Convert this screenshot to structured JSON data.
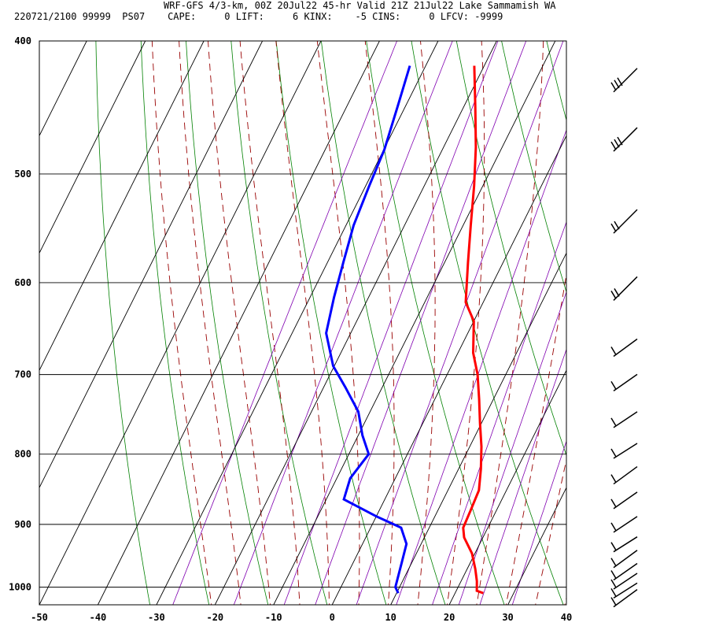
{
  "header": {
    "line1": "WRF-GFS 4/3-km, 00Z 20Jul22 45-hr Valid 21Z 21Jul22 Lake Sammamish WA",
    "line2": "220721/2100 99999  PS07    CAPE:     0 LIFT:     6 KINX:    -5 CINS:     0 LFCV: -9999"
  },
  "chart_data": {
    "type": "line",
    "subtype": "skew-t log-p sounding",
    "x_axis": {
      "label": "",
      "ticks": [
        -50,
        -40,
        -30,
        -20,
        -10,
        0,
        10,
        20,
        30,
        40
      ],
      "range": [
        -50,
        40
      ],
      "units": "degC"
    },
    "y_axis": {
      "label": "",
      "ticks": [
        400,
        500,
        600,
        700,
        800,
        900,
        1000
      ],
      "range": [
        400,
        1030
      ],
      "scale": "log",
      "units": "hPa"
    },
    "series": [
      {
        "color": "#ff0000",
        "points": [
          [
            -21.7,
            417
          ],
          [
            -18,
            447
          ],
          [
            -14.5,
            478
          ],
          [
            -11.5,
            510
          ],
          [
            -8.7,
            545
          ],
          [
            -6,
            580
          ],
          [
            -3,
            620
          ],
          [
            0,
            640
          ],
          [
            2.6,
            675
          ],
          [
            5.2,
            700
          ],
          [
            7.6,
            730
          ],
          [
            9.8,
            760
          ],
          [
            12,
            790
          ],
          [
            13.8,
            820
          ],
          [
            15.3,
            850
          ],
          [
            15.6,
            880
          ],
          [
            15.8,
            905
          ],
          [
            16.8,
            920
          ],
          [
            19.5,
            945
          ],
          [
            21.4,
            970
          ],
          [
            22.7,
            990
          ],
          [
            23.5,
            1006
          ],
          [
            24.8,
            1010
          ]
        ]
      },
      {
        "color": "#0000ff",
        "points": [
          [
            -32.7,
            417
          ],
          [
            -31.3,
            447
          ],
          [
            -29.9,
            480
          ],
          [
            -29.4,
            510
          ],
          [
            -28.7,
            545
          ],
          [
            -27.3,
            580
          ],
          [
            -25.9,
            615
          ],
          [
            -24.2,
            653
          ],
          [
            -20.2,
            690
          ],
          [
            -16.3,
            715
          ],
          [
            -12,
            745
          ],
          [
            -9.3,
            775
          ],
          [
            -6.6,
            800
          ],
          [
            -7.7,
            833
          ],
          [
            -7,
            863
          ],
          [
            0,
            888
          ],
          [
            5.2,
            905
          ],
          [
            7.5,
            930
          ],
          [
            8.3,
            960
          ],
          [
            9.3,
            1000
          ],
          [
            10.3,
            1010
          ]
        ]
      }
    ],
    "background_lines": {
      "isotherms_color": "#000000",
      "dry_adiabats_color": "#008000",
      "moist_adiabats_color": "#990000",
      "mixing_ratio_color": "#8000b0"
    },
    "wind_barbs_color": "#000000",
    "grid": true,
    "legend": "none"
  }
}
